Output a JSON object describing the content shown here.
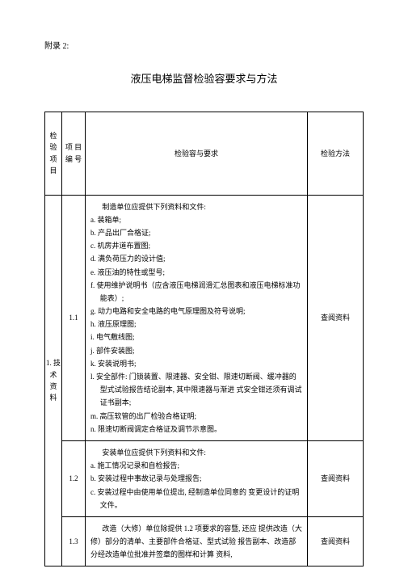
{
  "appendix_label": "附录 2:",
  "title": "液压电梯监督检验容要求与方法",
  "header": {
    "col1_l1": "检  验",
    "col1_l2": "项  目",
    "col2_l1": "项 目",
    "col2_l2": "编 号",
    "col3": "检验容与要求",
    "col4": "检验方法"
  },
  "cat1": {
    "l1": "1. 技",
    "l2": "术 资",
    "l3": "料"
  },
  "r1": {
    "num": "1.1",
    "lead": "制造单位应提供下列资料和文件:",
    "a": "a.  装箱单;",
    "b": "b.  产品出厂合格证;",
    "c": "c.  机房井道布置图;",
    "d": "d.  满负荷压力的设计值;",
    "e": "e.  液压油的特性或型号;",
    "f": "f.  使用维护说明书（应含液压电梯润滑汇总图表和液压电梯标准功能表）;",
    "g": "g.  动力电路和安全电路的电气原理图及符号说明;",
    "h": "h.  液压原理图;",
    "i": "i.  电气敷线图;",
    "j": "j.  部件安装图;",
    "k": "k.  安装说明书;",
    "l": "l.  安全部件: 门锁装置、限速器、安全钳、限速切断阀、缓冲器的型式试验报告结论副本, 其中限速器与渐进 式安全钳还须有调试证书副本;",
    "m": "m.  高压软管的出厂检验合格证明;",
    "n": "n.  限速切断阀调定合格证及调节示意图。",
    "method": "查阅资料"
  },
  "r2": {
    "num": "1.2",
    "lead": "安装单位应提供下列资料和文件:",
    "a": "a.  施工情况记录和自检报告;",
    "b": "b.  安装过程中事故记录与处理报告;",
    "c": "c.  安装过程中由使用单位提出, 经制造单位同意的 变更设计的证明文件。",
    "method": "查阅资料"
  },
  "r3": {
    "num": "1.3",
    "body": "改造（大修）单位除提供 1.2 项要求的容暨, 还应 提供改造（大修）部分的清单、主要部件合格证、型式试验 报告副本、改造部分经改造单位批准并签章的图样和计算 资料,",
    "method": "查阅资料"
  }
}
